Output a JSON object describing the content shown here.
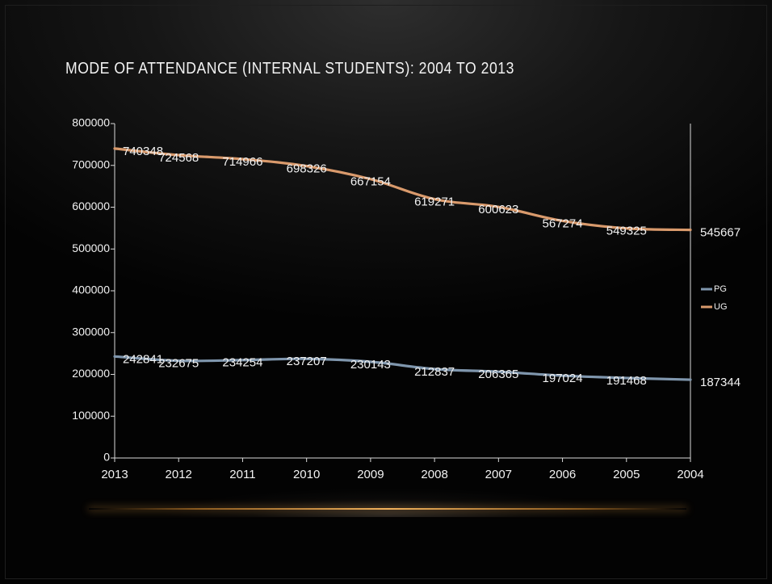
{
  "slide": {
    "title": "MODE OF ATTENDANCE (INTERNAL STUDENTS): 2004 TO 2013"
  },
  "chart_data": {
    "type": "line",
    "title": "",
    "xlabel": "",
    "ylabel": "",
    "categories": [
      "2013",
      "2012",
      "2011",
      "2010",
      "2009",
      "2008",
      "2007",
      "2006",
      "2005",
      "2004"
    ],
    "ylim": [
      0,
      800000
    ],
    "yticks": [
      0,
      100000,
      200000,
      300000,
      400000,
      500000,
      600000,
      700000,
      800000
    ],
    "grid": false,
    "legend_position": "right",
    "series": [
      {
        "name": "PG",
        "color": "#7f96ad",
        "values": [
          242841,
          232675,
          234254,
          237207,
          230143,
          212837,
          206365,
          197024,
          191468,
          187344
        ]
      },
      {
        "name": "UG",
        "color": "#d99a6c",
        "values": [
          740348,
          724568,
          714966,
          698326,
          667154,
          619271,
          600623,
          567274,
          549325,
          545667
        ]
      }
    ]
  }
}
